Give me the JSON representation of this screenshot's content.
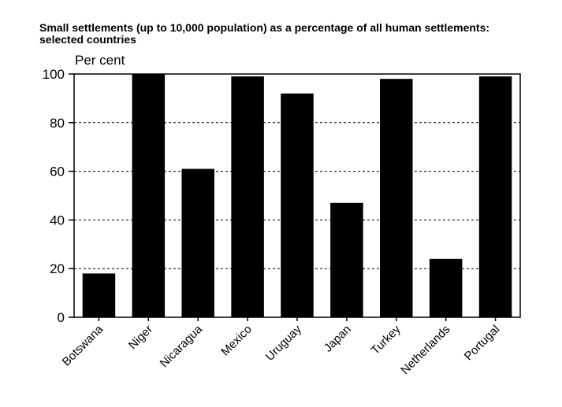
{
  "chart_data": {
    "type": "bar",
    "title": "Small settlements (up to 10,000 population) as a percentage of all human settlements: selected countries",
    "ylabel": "Per cent",
    "xlabel": "",
    "ylim": [
      0,
      100
    ],
    "yticks": [
      0,
      20,
      40,
      60,
      80,
      100
    ],
    "grid": "dashed horizontal",
    "bar_color": "#000000",
    "categories": [
      "Botswana",
      "Niger",
      "Nicaragua",
      "Mexico",
      "Uruguay",
      "Japan",
      "Turkey",
      "Netherlands",
      "Portugal"
    ],
    "values": [
      18,
      100,
      61,
      99,
      92,
      47,
      98,
      24,
      99
    ]
  }
}
